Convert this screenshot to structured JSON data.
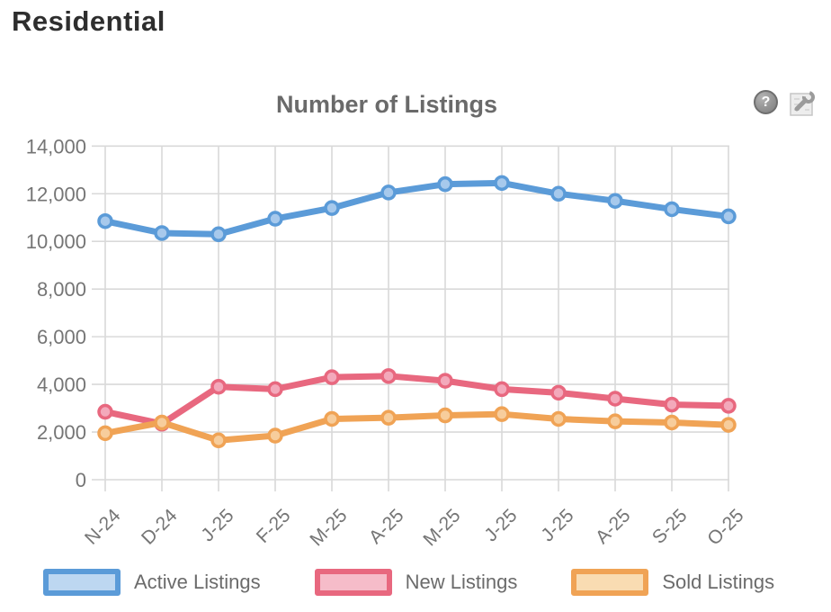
{
  "page": {
    "header": "Residential"
  },
  "chart": {
    "title": "Number of Listings",
    "help_icon_glyph": "?"
  },
  "chart_data": {
    "type": "line",
    "title": "Number of Listings",
    "categories": [
      "N-24",
      "D-24",
      "J-25",
      "F-25",
      "M-25",
      "A-25",
      "M-25",
      "J-25",
      "J-25",
      "A-25",
      "S-25",
      "O-25"
    ],
    "series": [
      {
        "name": "Active Listings",
        "color": "#5b9bd8",
        "marker_fill": "#a7c9ec",
        "legend_fill": "#bdd7f1",
        "values": [
          10850,
          10350,
          10300,
          10950,
          11400,
          12050,
          12400,
          12450,
          12000,
          11700,
          11350,
          11050
        ]
      },
      {
        "name": "New Listings",
        "color": "#e8687f",
        "marker_fill": "#f3a9bb",
        "legend_fill": "#f6bcc9",
        "values": [
          2850,
          2350,
          3900,
          3800,
          4300,
          4350,
          4150,
          3800,
          3650,
          3400,
          3150,
          3100
        ]
      },
      {
        "name": "Sold Listings",
        "color": "#f0a355",
        "marker_fill": "#f7cd9c",
        "legend_fill": "#f9dcb2",
        "values": [
          1950,
          2400,
          1650,
          1850,
          2550,
          2600,
          2700,
          2750,
          2550,
          2450,
          2400,
          2300
        ]
      }
    ],
    "ylim": [
      0,
      14000
    ],
    "ytick_step": 2000,
    "grid": true,
    "grid_color": "#d9d9d9",
    "axis_text_color": "#757575",
    "legend_position": "bottom",
    "xlabel": "",
    "ylabel": ""
  }
}
